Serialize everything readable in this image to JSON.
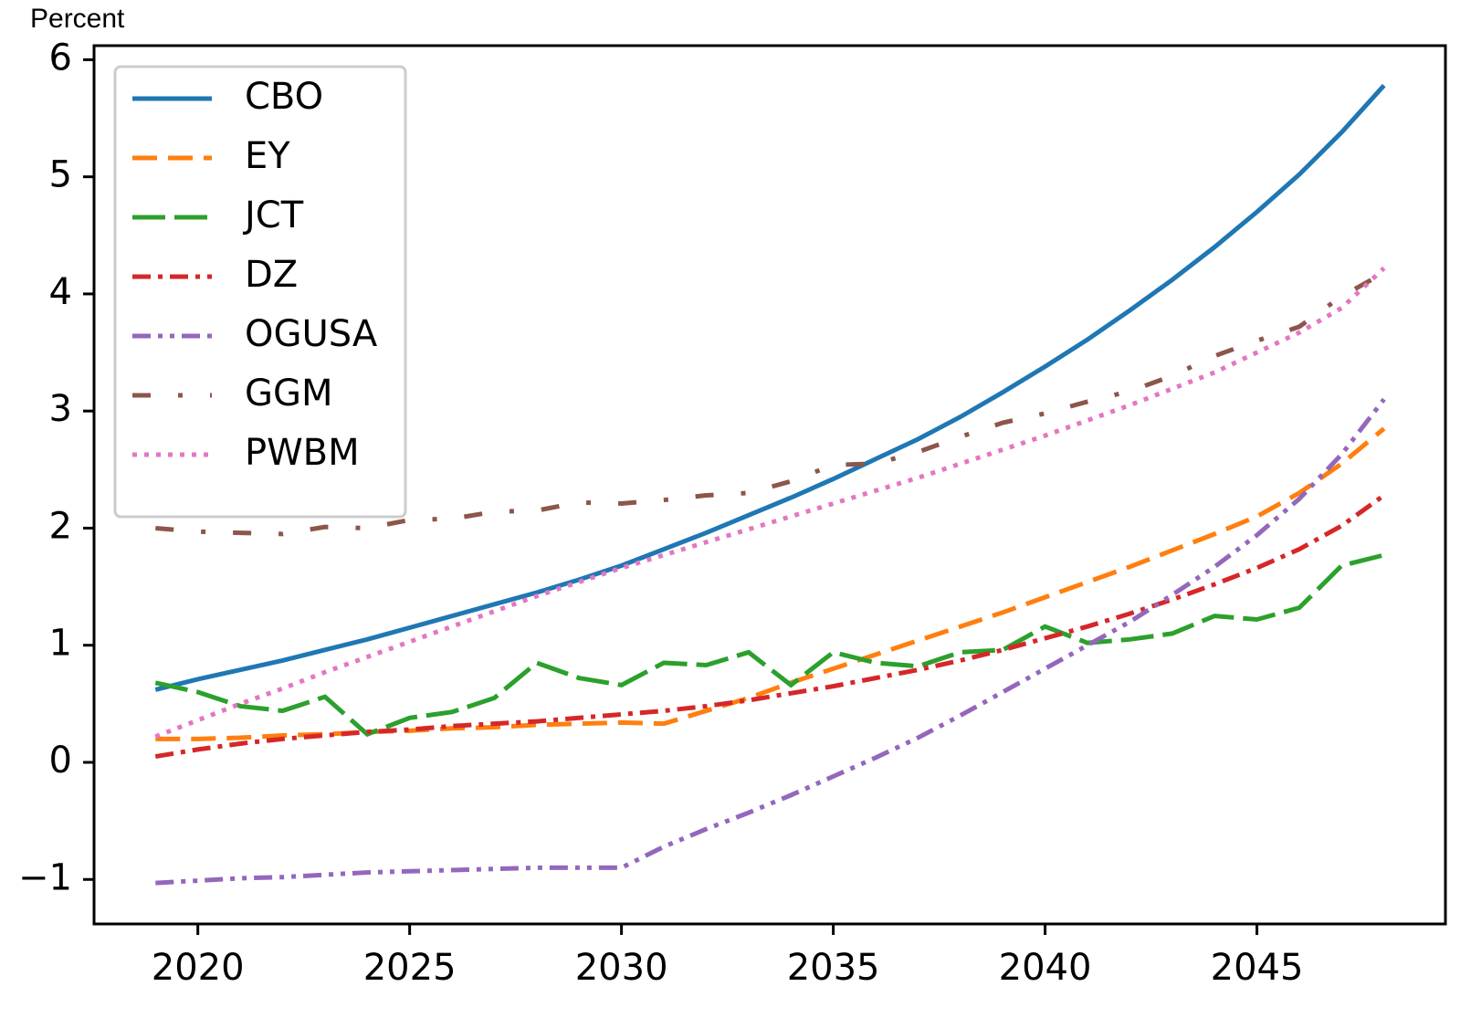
{
  "chart_data": {
    "type": "line",
    "ylabel": "Percent",
    "x": [
      2019,
      2020,
      2021,
      2022,
      2023,
      2024,
      2025,
      2026,
      2027,
      2028,
      2029,
      2030,
      2031,
      2032,
      2033,
      2034,
      2035,
      2036,
      2037,
      2038,
      2039,
      2040,
      2041,
      2042,
      2043,
      2044,
      2045,
      2046,
      2047,
      2048
    ],
    "xlim": [
      2017.55,
      2049.45
    ],
    "xticks": [
      2020,
      2025,
      2030,
      2035,
      2040,
      2045
    ],
    "ylim": [
      -1.38,
      6.12
    ],
    "yticks": [
      {
        "value": -1,
        "label": "−1"
      },
      0,
      1,
      2,
      3,
      4,
      5,
      6
    ],
    "legend": "upper left",
    "series": [
      {
        "name": "CBO",
        "color": "#1f77b4",
        "linestyle": "solid",
        "values": [
          0.62,
          0.71,
          0.79,
          0.87,
          0.96,
          1.05,
          1.15,
          1.25,
          1.35,
          1.45,
          1.56,
          1.68,
          1.82,
          1.96,
          2.11,
          2.26,
          2.42,
          2.59,
          2.76,
          2.95,
          3.16,
          3.38,
          3.61,
          3.86,
          4.12,
          4.4,
          4.7,
          5.02,
          5.38,
          5.78
        ]
      },
      {
        "name": "EY",
        "color": "#ff7f0e",
        "linestyle": "dashed",
        "values": [
          0.2,
          0.2,
          0.21,
          0.23,
          0.24,
          0.26,
          0.27,
          0.29,
          0.3,
          0.32,
          0.33,
          0.34,
          0.33,
          0.44,
          0.55,
          0.68,
          0.8,
          0.92,
          1.04,
          1.16,
          1.28,
          1.41,
          1.54,
          1.67,
          1.81,
          1.95,
          2.1,
          2.3,
          2.55,
          2.85
        ]
      },
      {
        "name": "JCT",
        "color": "#2ca02c",
        "linestyle": "longdash",
        "values": [
          0.68,
          0.6,
          0.48,
          0.44,
          0.56,
          0.24,
          0.38,
          0.43,
          0.55,
          0.85,
          0.72,
          0.66,
          0.85,
          0.83,
          0.94,
          0.66,
          0.94,
          0.85,
          0.82,
          0.94,
          0.96,
          1.16,
          1.02,
          1.05,
          1.1,
          1.25,
          1.22,
          1.32,
          1.68,
          1.77
        ]
      },
      {
        "name": "DZ",
        "color": "#d62728",
        "linestyle": "dashdot",
        "values": [
          0.05,
          0.11,
          0.16,
          0.2,
          0.23,
          0.26,
          0.28,
          0.31,
          0.33,
          0.35,
          0.38,
          0.41,
          0.44,
          0.48,
          0.53,
          0.59,
          0.65,
          0.72,
          0.79,
          0.87,
          0.96,
          1.06,
          1.16,
          1.27,
          1.39,
          1.52,
          1.66,
          1.82,
          2.02,
          2.28
        ]
      },
      {
        "name": "OGUSA",
        "color": "#9467bd",
        "linestyle": "dashdotdot",
        "values": [
          -1.03,
          -1.01,
          -0.99,
          -0.98,
          -0.96,
          -0.94,
          -0.93,
          -0.92,
          -0.91,
          -0.9,
          -0.9,
          -0.9,
          -0.72,
          -0.57,
          -0.43,
          -0.28,
          -0.12,
          0.04,
          0.21,
          0.4,
          0.6,
          0.8,
          1.0,
          1.2,
          1.43,
          1.67,
          1.94,
          2.25,
          2.63,
          3.1
        ]
      },
      {
        "name": "GGM",
        "color": "#8c564b",
        "linestyle": "loosedashdot",
        "values": [
          2.0,
          1.97,
          1.96,
          1.95,
          2.01,
          2.0,
          2.07,
          2.08,
          2.14,
          2.15,
          2.22,
          2.21,
          2.24,
          2.28,
          2.3,
          2.4,
          2.54,
          2.55,
          2.65,
          2.78,
          2.9,
          2.98,
          3.08,
          3.17,
          3.3,
          3.47,
          3.6,
          3.72,
          3.98,
          4.18
        ]
      },
      {
        "name": "PWBM",
        "color": "#e377c2",
        "linestyle": "dotted",
        "values": [
          0.22,
          0.36,
          0.5,
          0.63,
          0.77,
          0.9,
          1.03,
          1.16,
          1.29,
          1.42,
          1.54,
          1.66,
          1.77,
          1.88,
          1.99,
          2.1,
          2.21,
          2.32,
          2.43,
          2.55,
          2.67,
          2.79,
          2.92,
          3.05,
          3.19,
          3.33,
          3.5,
          3.67,
          3.88,
          4.22
        ]
      }
    ]
  }
}
